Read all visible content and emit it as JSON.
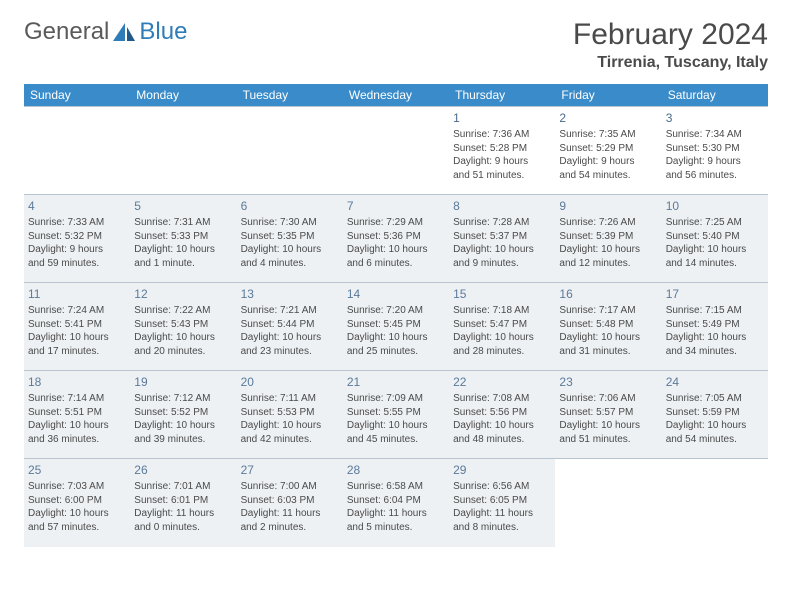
{
  "logo": {
    "general": "General",
    "blue": "Blue"
  },
  "title": "February 2024",
  "location": "Tirrenia, Tuscany, Italy",
  "header_bg": "#3a8bc9",
  "header_text": "#ffffff",
  "shade_bg": "#eef1f4",
  "border_color": "#b8c4d0",
  "logo_color": "#2f7db8",
  "days_of_week": [
    "Sunday",
    "Monday",
    "Tuesday",
    "Wednesday",
    "Thursday",
    "Friday",
    "Saturday"
  ],
  "weeks": [
    [
      {
        "empty": true
      },
      {
        "empty": true
      },
      {
        "empty": true
      },
      {
        "empty": true
      },
      {
        "num": "1",
        "sunrise": "Sunrise: 7:36 AM",
        "sunset": "Sunset: 5:28 PM",
        "day1": "Daylight: 9 hours",
        "day2": "and 51 minutes."
      },
      {
        "num": "2",
        "sunrise": "Sunrise: 7:35 AM",
        "sunset": "Sunset: 5:29 PM",
        "day1": "Daylight: 9 hours",
        "day2": "and 54 minutes."
      },
      {
        "num": "3",
        "sunrise": "Sunrise: 7:34 AM",
        "sunset": "Sunset: 5:30 PM",
        "day1": "Daylight: 9 hours",
        "day2": "and 56 minutes."
      }
    ],
    [
      {
        "num": "4",
        "shaded": true,
        "sunrise": "Sunrise: 7:33 AM",
        "sunset": "Sunset: 5:32 PM",
        "day1": "Daylight: 9 hours",
        "day2": "and 59 minutes."
      },
      {
        "num": "5",
        "shaded": true,
        "sunrise": "Sunrise: 7:31 AM",
        "sunset": "Sunset: 5:33 PM",
        "day1": "Daylight: 10 hours",
        "day2": "and 1 minute."
      },
      {
        "num": "6",
        "shaded": true,
        "sunrise": "Sunrise: 7:30 AM",
        "sunset": "Sunset: 5:35 PM",
        "day1": "Daylight: 10 hours",
        "day2": "and 4 minutes."
      },
      {
        "num": "7",
        "shaded": true,
        "sunrise": "Sunrise: 7:29 AM",
        "sunset": "Sunset: 5:36 PM",
        "day1": "Daylight: 10 hours",
        "day2": "and 6 minutes."
      },
      {
        "num": "8",
        "shaded": true,
        "sunrise": "Sunrise: 7:28 AM",
        "sunset": "Sunset: 5:37 PM",
        "day1": "Daylight: 10 hours",
        "day2": "and 9 minutes."
      },
      {
        "num": "9",
        "shaded": true,
        "sunrise": "Sunrise: 7:26 AM",
        "sunset": "Sunset: 5:39 PM",
        "day1": "Daylight: 10 hours",
        "day2": "and 12 minutes."
      },
      {
        "num": "10",
        "shaded": true,
        "sunrise": "Sunrise: 7:25 AM",
        "sunset": "Sunset: 5:40 PM",
        "day1": "Daylight: 10 hours",
        "day2": "and 14 minutes."
      }
    ],
    [
      {
        "num": "11",
        "shaded": true,
        "sunrise": "Sunrise: 7:24 AM",
        "sunset": "Sunset: 5:41 PM",
        "day1": "Daylight: 10 hours",
        "day2": "and 17 minutes."
      },
      {
        "num": "12",
        "shaded": true,
        "sunrise": "Sunrise: 7:22 AM",
        "sunset": "Sunset: 5:43 PM",
        "day1": "Daylight: 10 hours",
        "day2": "and 20 minutes."
      },
      {
        "num": "13",
        "shaded": true,
        "sunrise": "Sunrise: 7:21 AM",
        "sunset": "Sunset: 5:44 PM",
        "day1": "Daylight: 10 hours",
        "day2": "and 23 minutes."
      },
      {
        "num": "14",
        "shaded": true,
        "sunrise": "Sunrise: 7:20 AM",
        "sunset": "Sunset: 5:45 PM",
        "day1": "Daylight: 10 hours",
        "day2": "and 25 minutes."
      },
      {
        "num": "15",
        "shaded": true,
        "sunrise": "Sunrise: 7:18 AM",
        "sunset": "Sunset: 5:47 PM",
        "day1": "Daylight: 10 hours",
        "day2": "and 28 minutes."
      },
      {
        "num": "16",
        "shaded": true,
        "sunrise": "Sunrise: 7:17 AM",
        "sunset": "Sunset: 5:48 PM",
        "day1": "Daylight: 10 hours",
        "day2": "and 31 minutes."
      },
      {
        "num": "17",
        "shaded": true,
        "sunrise": "Sunrise: 7:15 AM",
        "sunset": "Sunset: 5:49 PM",
        "day1": "Daylight: 10 hours",
        "day2": "and 34 minutes."
      }
    ],
    [
      {
        "num": "18",
        "shaded": true,
        "sunrise": "Sunrise: 7:14 AM",
        "sunset": "Sunset: 5:51 PM",
        "day1": "Daylight: 10 hours",
        "day2": "and 36 minutes."
      },
      {
        "num": "19",
        "shaded": true,
        "sunrise": "Sunrise: 7:12 AM",
        "sunset": "Sunset: 5:52 PM",
        "day1": "Daylight: 10 hours",
        "day2": "and 39 minutes."
      },
      {
        "num": "20",
        "shaded": true,
        "sunrise": "Sunrise: 7:11 AM",
        "sunset": "Sunset: 5:53 PM",
        "day1": "Daylight: 10 hours",
        "day2": "and 42 minutes."
      },
      {
        "num": "21",
        "shaded": true,
        "sunrise": "Sunrise: 7:09 AM",
        "sunset": "Sunset: 5:55 PM",
        "day1": "Daylight: 10 hours",
        "day2": "and 45 minutes."
      },
      {
        "num": "22",
        "shaded": true,
        "sunrise": "Sunrise: 7:08 AM",
        "sunset": "Sunset: 5:56 PM",
        "day1": "Daylight: 10 hours",
        "day2": "and 48 minutes."
      },
      {
        "num": "23",
        "shaded": true,
        "sunrise": "Sunrise: 7:06 AM",
        "sunset": "Sunset: 5:57 PM",
        "day1": "Daylight: 10 hours",
        "day2": "and 51 minutes."
      },
      {
        "num": "24",
        "shaded": true,
        "sunrise": "Sunrise: 7:05 AM",
        "sunset": "Sunset: 5:59 PM",
        "day1": "Daylight: 10 hours",
        "day2": "and 54 minutes."
      }
    ],
    [
      {
        "num": "25",
        "shaded": true,
        "sunrise": "Sunrise: 7:03 AM",
        "sunset": "Sunset: 6:00 PM",
        "day1": "Daylight: 10 hours",
        "day2": "and 57 minutes."
      },
      {
        "num": "26",
        "shaded": true,
        "sunrise": "Sunrise: 7:01 AM",
        "sunset": "Sunset: 6:01 PM",
        "day1": "Daylight: 11 hours",
        "day2": "and 0 minutes."
      },
      {
        "num": "27",
        "shaded": true,
        "sunrise": "Sunrise: 7:00 AM",
        "sunset": "Sunset: 6:03 PM",
        "day1": "Daylight: 11 hours",
        "day2": "and 2 minutes."
      },
      {
        "num": "28",
        "shaded": true,
        "sunrise": "Sunrise: 6:58 AM",
        "sunset": "Sunset: 6:04 PM",
        "day1": "Daylight: 11 hours",
        "day2": "and 5 minutes."
      },
      {
        "num": "29",
        "shaded": true,
        "sunrise": "Sunrise: 6:56 AM",
        "sunset": "Sunset: 6:05 PM",
        "day1": "Daylight: 11 hours",
        "day2": "and 8 minutes."
      },
      {
        "empty": true
      },
      {
        "empty": true
      }
    ]
  ]
}
